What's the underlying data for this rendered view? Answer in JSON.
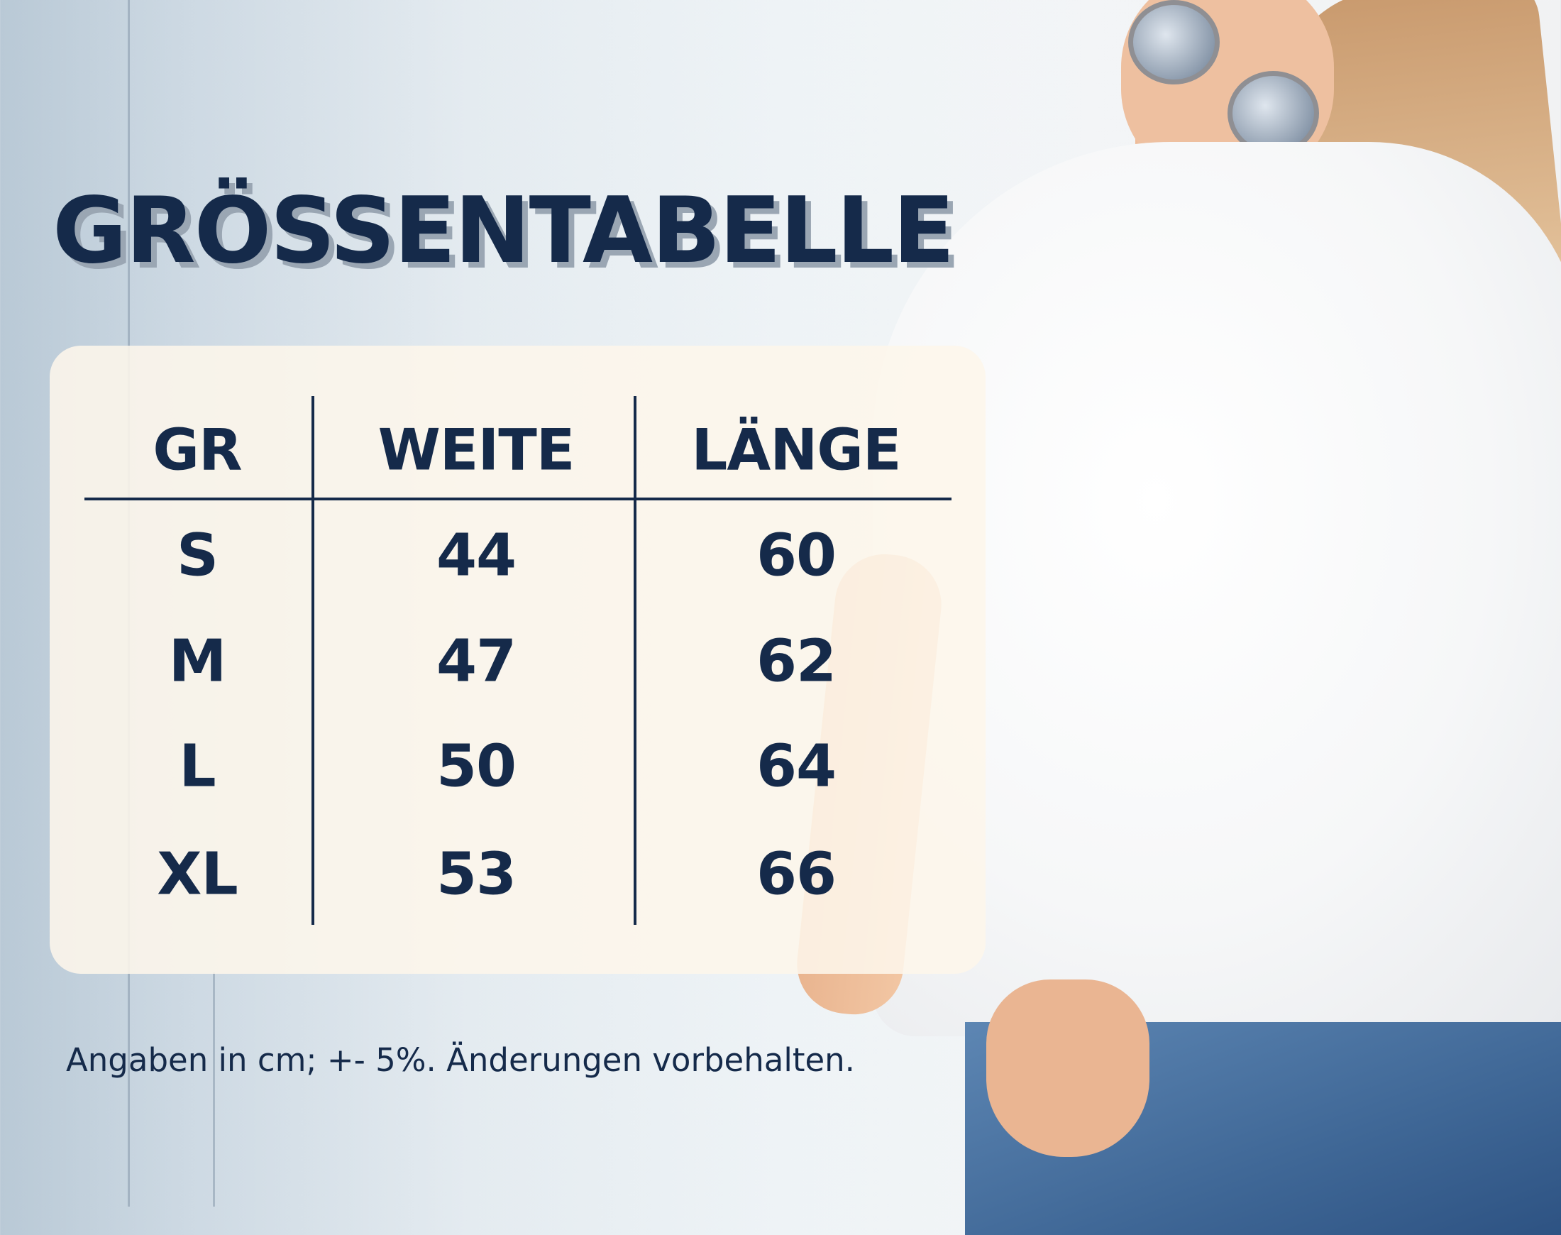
{
  "title": "GRÖSSENTABELLE",
  "table": {
    "headers": [
      "GR",
      "WEITE",
      "LÄNGE"
    ],
    "rows": [
      [
        "S",
        "44",
        "60"
      ],
      [
        "M",
        "47",
        "62"
      ],
      [
        "L",
        "50",
        "64"
      ],
      [
        "XL",
        "53",
        "66"
      ]
    ]
  },
  "footer": "Angaben in cm;  +- 5%. Änderungen vorbehalten.",
  "colors": {
    "text": "#152a4a",
    "panel": "#fdf6ea",
    "title_shadow": "#9aa6b3"
  }
}
